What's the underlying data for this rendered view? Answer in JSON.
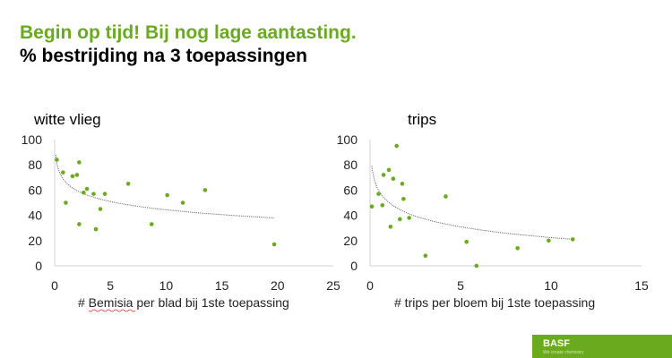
{
  "slide": {
    "title": "Begin op tijd! Bij nog lage aantasting.",
    "subtitle": "% bestrijding na 3 toepassingen",
    "logo": {
      "name": "BASF",
      "slogan": "We create chemistry"
    },
    "accent_color": "#6aaa1e"
  },
  "chart_data": [
    {
      "type": "scatter",
      "title": "witte vlieg",
      "xlabel": "# Bemisia per blad bij 1ste toepassing",
      "ylabel": "",
      "xlim": [
        0,
        25
      ],
      "ylim": [
        0,
        100
      ],
      "xticks": [
        0,
        5,
        10,
        15,
        20,
        25
      ],
      "yticks": [
        0,
        20,
        40,
        60,
        80,
        100
      ],
      "grid": false,
      "point_color": "#6aaa1e",
      "points": [
        [
          0.2,
          84
        ],
        [
          0.75,
          74
        ],
        [
          1.0,
          50
        ],
        [
          1.6,
          71
        ],
        [
          2.0,
          72
        ],
        [
          2.2,
          82
        ],
        [
          2.2,
          33
        ],
        [
          2.6,
          58
        ],
        [
          2.9,
          61
        ],
        [
          3.5,
          57
        ],
        [
          3.7,
          29
        ],
        [
          4.1,
          45
        ],
        [
          4.5,
          57
        ],
        [
          6.6,
          65
        ],
        [
          8.7,
          33
        ],
        [
          10.1,
          56
        ],
        [
          11.5,
          50
        ],
        [
          13.5,
          60
        ],
        [
          19.7,
          17
        ]
      ],
      "trendline": {
        "type": "logarithmic",
        "style": "dotted",
        "x_range": [
          0.1,
          19.7
        ],
        "a": 66.2,
        "b": -9.47
      }
    },
    {
      "type": "scatter",
      "title": "trips",
      "xlabel": "# trips per bloem bij 1ste toepassing",
      "ylabel": "",
      "xlim": [
        0,
        15
      ],
      "ylim": [
        0,
        100
      ],
      "xticks": [
        0,
        5,
        10,
        15
      ],
      "yticks": [
        0,
        20,
        40,
        60,
        80,
        100
      ],
      "grid": false,
      "point_color": "#6aaa1e",
      "points": [
        [
          0.1,
          47
        ],
        [
          0.47,
          57
        ],
        [
          0.68,
          48
        ],
        [
          0.75,
          72
        ],
        [
          1.04,
          76
        ],
        [
          1.13,
          31
        ],
        [
          1.28,
          69
        ],
        [
          1.47,
          95
        ],
        [
          1.65,
          37
        ],
        [
          1.78,
          65
        ],
        [
          1.85,
          53
        ],
        [
          2.16,
          38
        ],
        [
          3.06,
          8
        ],
        [
          4.18,
          55
        ],
        [
          5.33,
          19
        ],
        [
          5.88,
          0
        ],
        [
          8.15,
          14
        ],
        [
          9.87,
          20
        ],
        [
          11.2,
          21
        ]
      ],
      "trendline": {
        "type": "logarithmic",
        "style": "dotted",
        "x_range": [
          0.1,
          11.2
        ],
        "a": 50.7,
        "b": -12.3
      }
    }
  ]
}
